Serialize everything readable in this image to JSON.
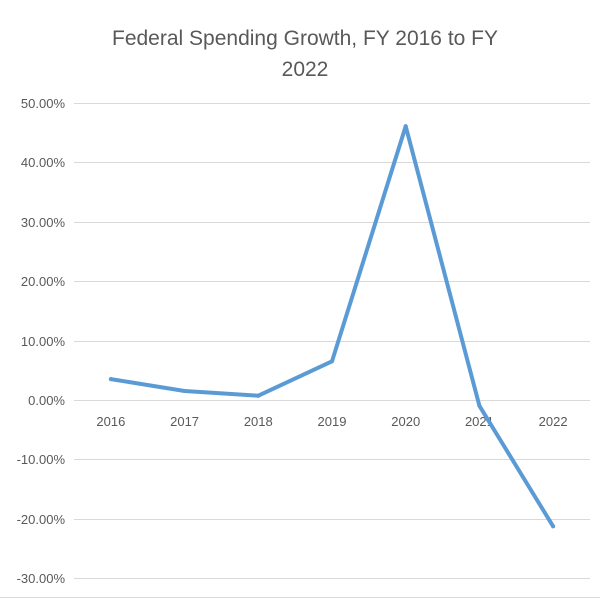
{
  "chart_data": {
    "type": "line",
    "title_lines": [
      "Federal Spending Growth, FY 2016 to FY",
      "2022"
    ],
    "xlabel": "",
    "ylabel": "",
    "categories": [
      "2016",
      "2017",
      "2018",
      "2019",
      "2020",
      "2021",
      "2022"
    ],
    "series": [
      {
        "values": [
          0.035,
          0.015,
          0.007,
          0.065,
          0.461,
          -0.01,
          -0.213
        ]
      }
    ],
    "ylim": [
      -0.3,
      0.5
    ],
    "yticks": [
      0.5,
      0.4,
      0.3,
      0.2,
      0.1,
      0.0,
      -0.1,
      -0.2,
      -0.3
    ],
    "ytick_labels": [
      "50.00%",
      "40.00%",
      "30.00%",
      "20.00%",
      "10.00%",
      "0.00%",
      "-10.00%",
      "-20.00%",
      "-30.00%"
    ],
    "grid": true,
    "legend": "none",
    "colors": {
      "line": "#5b9bd5",
      "grid": "#d9d9d9",
      "text": "#595959",
      "border": "#d9d9d9"
    }
  }
}
